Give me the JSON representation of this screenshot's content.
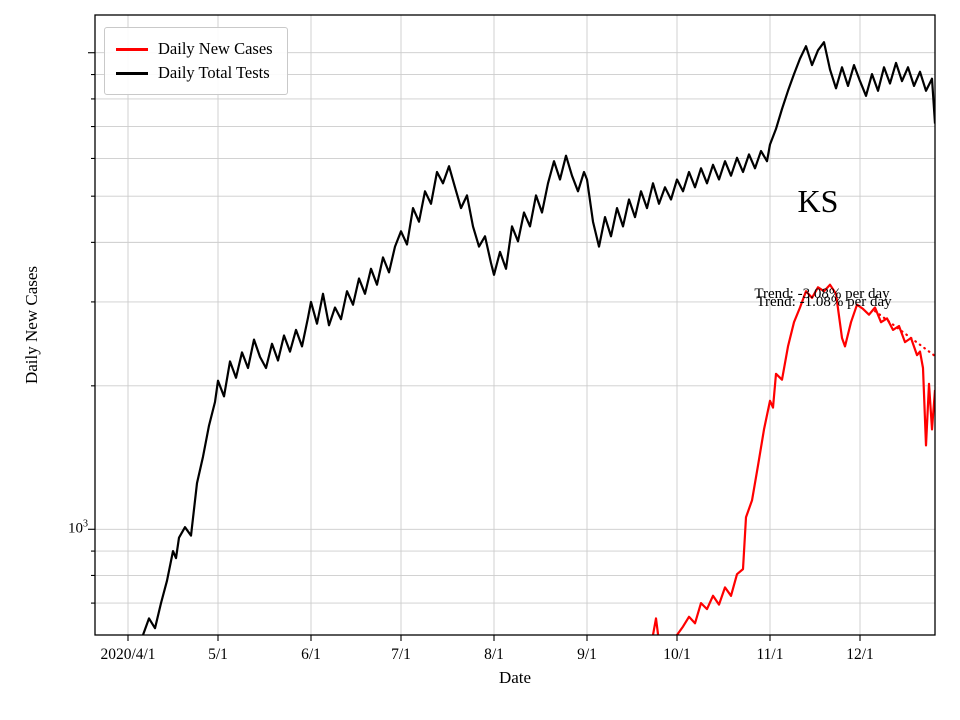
{
  "chart_data": {
    "type": "line",
    "title": "",
    "xlabel": "Date",
    "ylabel": "Daily New Cases",
    "state_label": "KS",
    "trend_labels": [
      "Trend: -3.08% per day",
      "Trend: -1.08% per day"
    ],
    "y_scale": "log",
    "ylim": [
      600,
      12000
    ],
    "y_tick_label": {
      "base": "10",
      "exponent": "3"
    },
    "y_gridlines": [
      700,
      800,
      900,
      1000,
      2000,
      3000,
      4000,
      5000,
      6000,
      7000,
      8000,
      9000,
      10000
    ],
    "grid": true,
    "x_range_days": [
      -11,
      269
    ],
    "x_epoch": "2020/4/1",
    "x_tick_days": [
      0,
      30,
      61,
      91,
      122,
      153,
      183,
      214,
      244
    ],
    "x_tick_labels": [
      "2020/4/1",
      "5/1",
      "6/1",
      "7/1",
      "8/1",
      "9/1",
      "10/1",
      "11/1",
      "12/1"
    ],
    "legend_entries": [
      {
        "label": "Daily New Cases",
        "color": "#ff0000"
      },
      {
        "label": "Daily Total Tests",
        "color": "#000000"
      }
    ],
    "series": [
      {
        "name": "Daily Total Tests",
        "color": "#000000",
        "style": "solid",
        "points": [
          [
            5,
            600
          ],
          [
            7,
            650
          ],
          [
            9,
            620
          ],
          [
            11,
            700
          ],
          [
            13,
            780
          ],
          [
            15,
            900
          ],
          [
            16,
            870
          ],
          [
            17,
            960
          ],
          [
            19,
            1010
          ],
          [
            21,
            970
          ],
          [
            23,
            1250
          ],
          [
            25,
            1420
          ],
          [
            27,
            1650
          ],
          [
            29,
            1850
          ],
          [
            30,
            2050
          ],
          [
            32,
            1900
          ],
          [
            34,
            2250
          ],
          [
            36,
            2080
          ],
          [
            38,
            2350
          ],
          [
            40,
            2180
          ],
          [
            42,
            2500
          ],
          [
            44,
            2300
          ],
          [
            46,
            2180
          ],
          [
            48,
            2450
          ],
          [
            50,
            2260
          ],
          [
            52,
            2550
          ],
          [
            54,
            2360
          ],
          [
            56,
            2620
          ],
          [
            58,
            2420
          ],
          [
            60,
            2780
          ],
          [
            61,
            3000
          ],
          [
            63,
            2700
          ],
          [
            65,
            3120
          ],
          [
            67,
            2680
          ],
          [
            69,
            2920
          ],
          [
            71,
            2760
          ],
          [
            73,
            3160
          ],
          [
            75,
            2960
          ],
          [
            77,
            3360
          ],
          [
            79,
            3120
          ],
          [
            81,
            3520
          ],
          [
            83,
            3260
          ],
          [
            85,
            3720
          ],
          [
            87,
            3460
          ],
          [
            89,
            3920
          ],
          [
            91,
            4220
          ],
          [
            93,
            3960
          ],
          [
            95,
            4720
          ],
          [
            97,
            4420
          ],
          [
            99,
            5120
          ],
          [
            101,
            4820
          ],
          [
            103,
            5620
          ],
          [
            105,
            5320
          ],
          [
            107,
            5780
          ],
          [
            109,
            5220
          ],
          [
            111,
            4720
          ],
          [
            113,
            5020
          ],
          [
            115,
            4320
          ],
          [
            117,
            3920
          ],
          [
            119,
            4120
          ],
          [
            121,
            3620
          ],
          [
            122,
            3420
          ],
          [
            124,
            3820
          ],
          [
            126,
            3520
          ],
          [
            128,
            4320
          ],
          [
            130,
            4020
          ],
          [
            132,
            4620
          ],
          [
            134,
            4320
          ],
          [
            136,
            5020
          ],
          [
            138,
            4620
          ],
          [
            140,
            5320
          ],
          [
            142,
            5920
          ],
          [
            144,
            5420
          ],
          [
            146,
            6080
          ],
          [
            148,
            5520
          ],
          [
            150,
            5120
          ],
          [
            152,
            5620
          ],
          [
            153,
            5420
          ],
          [
            155,
            4420
          ],
          [
            157,
            3920
          ],
          [
            159,
            4520
          ],
          [
            161,
            4120
          ],
          [
            163,
            4720
          ],
          [
            165,
            4320
          ],
          [
            167,
            4920
          ],
          [
            169,
            4520
          ],
          [
            171,
            5120
          ],
          [
            173,
            4720
          ],
          [
            175,
            5320
          ],
          [
            177,
            4820
          ],
          [
            179,
            5220
          ],
          [
            181,
            4920
          ],
          [
            183,
            5420
          ],
          [
            185,
            5120
          ],
          [
            187,
            5620
          ],
          [
            189,
            5220
          ],
          [
            191,
            5720
          ],
          [
            193,
            5320
          ],
          [
            195,
            5820
          ],
          [
            197,
            5420
          ],
          [
            199,
            5920
          ],
          [
            201,
            5520
          ],
          [
            203,
            6020
          ],
          [
            205,
            5620
          ],
          [
            207,
            6120
          ],
          [
            209,
            5720
          ],
          [
            211,
            6220
          ],
          [
            213,
            5920
          ],
          [
            214,
            6420
          ],
          [
            216,
            6920
          ],
          [
            218,
            7620
          ],
          [
            220,
            8320
          ],
          [
            222,
            9020
          ],
          [
            224,
            9720
          ],
          [
            226,
            10320
          ],
          [
            228,
            9420
          ],
          [
            230,
            10120
          ],
          [
            232,
            10520
          ],
          [
            234,
            9220
          ],
          [
            236,
            8420
          ],
          [
            238,
            9320
          ],
          [
            240,
            8520
          ],
          [
            242,
            9420
          ],
          [
            244,
            8720
          ],
          [
            246,
            8120
          ],
          [
            248,
            9020
          ],
          [
            250,
            8320
          ],
          [
            252,
            9320
          ],
          [
            254,
            8620
          ],
          [
            256,
            9520
          ],
          [
            258,
            8720
          ],
          [
            260,
            9320
          ],
          [
            262,
            8520
          ],
          [
            264,
            9120
          ],
          [
            266,
            8320
          ],
          [
            268,
            8820
          ],
          [
            269,
            7100
          ]
        ]
      },
      {
        "name": "Daily New Cases",
        "color": "#ff0000",
        "style": "solid",
        "points": [
          [
            175,
            600
          ],
          [
            176,
            650
          ],
          [
            177,
            580
          ],
          [
            178,
            555
          ],
          [
            180,
            570
          ],
          [
            182,
            590
          ],
          [
            183,
            600
          ],
          [
            185,
            625
          ],
          [
            187,
            655
          ],
          [
            189,
            635
          ],
          [
            191,
            700
          ],
          [
            193,
            680
          ],
          [
            195,
            725
          ],
          [
            197,
            695
          ],
          [
            199,
            755
          ],
          [
            201,
            725
          ],
          [
            203,
            805
          ],
          [
            205,
            825
          ],
          [
            206,
            1060
          ],
          [
            208,
            1150
          ],
          [
            210,
            1360
          ],
          [
            212,
            1620
          ],
          [
            214,
            1860
          ],
          [
            215,
            1800
          ],
          [
            216,
            2120
          ],
          [
            218,
            2060
          ],
          [
            220,
            2420
          ],
          [
            222,
            2720
          ],
          [
            224,
            2920
          ],
          [
            226,
            3160
          ],
          [
            228,
            3060
          ],
          [
            230,
            3220
          ],
          [
            232,
            3160
          ],
          [
            234,
            3260
          ],
          [
            236,
            3120
          ],
          [
            238,
            2520
          ],
          [
            239,
            2420
          ],
          [
            241,
            2720
          ],
          [
            243,
            2960
          ],
          [
            245,
            2900
          ],
          [
            247,
            2820
          ],
          [
            249,
            2920
          ],
          [
            251,
            2720
          ],
          [
            253,
            2770
          ],
          [
            255,
            2620
          ],
          [
            257,
            2670
          ],
          [
            259,
            2470
          ],
          [
            261,
            2520
          ],
          [
            263,
            2320
          ],
          [
            264,
            2360
          ],
          [
            265,
            2180
          ],
          [
            266,
            1500
          ],
          [
            267,
            2020
          ],
          [
            268,
            1620
          ],
          [
            269,
            1960
          ]
        ]
      },
      {
        "name": "Cases trend fit",
        "color": "#ff0000",
        "style": "dotted",
        "points": [
          [
            249,
            2870
          ],
          [
            269,
            2310
          ]
        ]
      }
    ]
  }
}
